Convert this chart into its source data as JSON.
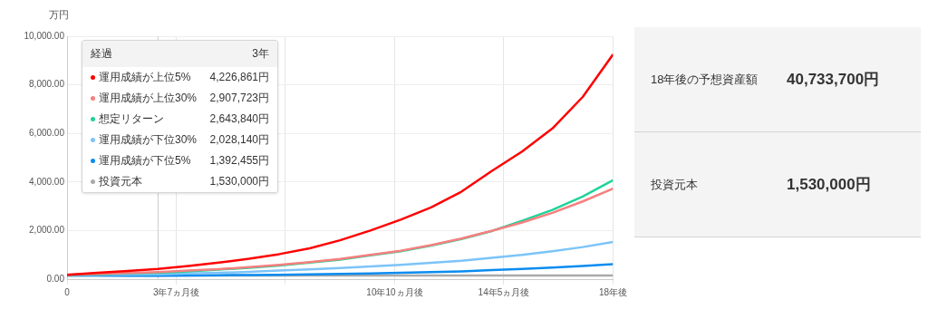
{
  "chart_data": [
    {
      "type": "line",
      "ylabel": "万円",
      "legend_title": "経過",
      "legend": "top left",
      "grid": true,
      "marker": "none",
      "line_style": "solid",
      "x": [
        0,
        1,
        2,
        3,
        4,
        5,
        6,
        7,
        8,
        9,
        10,
        11,
        12,
        13,
        14,
        15,
        16,
        17,
        18
      ],
      "xlim": [
        0,
        18
      ],
      "xticks": [
        0,
        {
          "value": 3.6,
          "label": "3年7ヵ月後"
        },
        {
          "value": 7.2,
          "label": null
        },
        {
          "value": 10.8,
          "label": "10年10ヵ月後"
        },
        {
          "value": 14.4,
          "label": "14年5ヵ月後"
        },
        {
          "value": 18,
          "label": "18年後"
        }
      ],
      "ylim": [
        0,
        10000
      ],
      "yticks": [
        {
          "value": 0,
          "label": "0.00"
        },
        {
          "value": 2000,
          "label": "2,000.00"
        },
        {
          "value": 4000,
          "label": "4,000.00"
        },
        {
          "value": 6000,
          "label": "6,000.00"
        },
        {
          "value": 8000,
          "label": "8,000.00"
        },
        {
          "value": 10000,
          "label": "10,000.00"
        }
      ],
      "series": [
        {
          "name": "運用成績が上位5%",
          "color": "#ff0000",
          "values": [
            180,
            260,
            340,
            420,
            540,
            680,
            840,
            1030,
            1270,
            1600,
            2000,
            2450,
            2950,
            3600,
            4450,
            5250,
            6200,
            7500,
            9250
          ]
        },
        {
          "name": "運用成績が上位30%",
          "color": "#f77f7f",
          "values": [
            180,
            210,
            250,
            290,
            350,
            410,
            490,
            590,
            700,
            830,
            1000,
            1170,
            1400,
            1670,
            1990,
            2330,
            2730,
            3200,
            3730
          ]
        },
        {
          "name": "想定リターン",
          "color": "#1ed39a",
          "values": [
            180,
            200,
            240,
            260,
            320,
            390,
            470,
            560,
            680,
            800,
            980,
            1150,
            1380,
            1650,
            1980,
            2400,
            2850,
            3400,
            4070
          ]
        },
        {
          "name": "運用成績が下位30%",
          "color": "#7cc4f8",
          "values": [
            180,
            180,
            190,
            200,
            230,
            260,
            300,
            350,
            400,
            460,
            520,
            590,
            670,
            760,
            880,
            1000,
            1150,
            1320,
            1530
          ]
        },
        {
          "name": "運用成績が下位5%",
          "color": "#0a8cf0",
          "values": [
            150,
            150,
            140,
            140,
            150,
            160,
            170,
            180,
            200,
            210,
            230,
            260,
            290,
            320,
            370,
            420,
            480,
            540,
            620
          ]
        },
        {
          "name": "投資元本",
          "color": "#aaaaaa",
          "values": [
            150,
            150,
            150,
            150,
            150,
            150,
            150,
            150,
            150,
            150,
            150,
            150,
            150,
            150,
            150,
            150,
            150,
            150,
            150
          ]
        }
      ],
      "ref_lines": [
        {
          "axis": "x",
          "value": 3,
          "color": "#cccccc"
        }
      ],
      "annotations": [
        "3年",
        "4,226,861円",
        "2,907,723円",
        "2,643,840円",
        "2,028,140円",
        "1,392,455円",
        "1,530,000円"
      ]
    },
    {
      "type": "other",
      "annotations": [
        "18年後の予想資産額",
        "40,733,700円",
        "投資元本",
        "1,530,000円"
      ]
    }
  ]
}
